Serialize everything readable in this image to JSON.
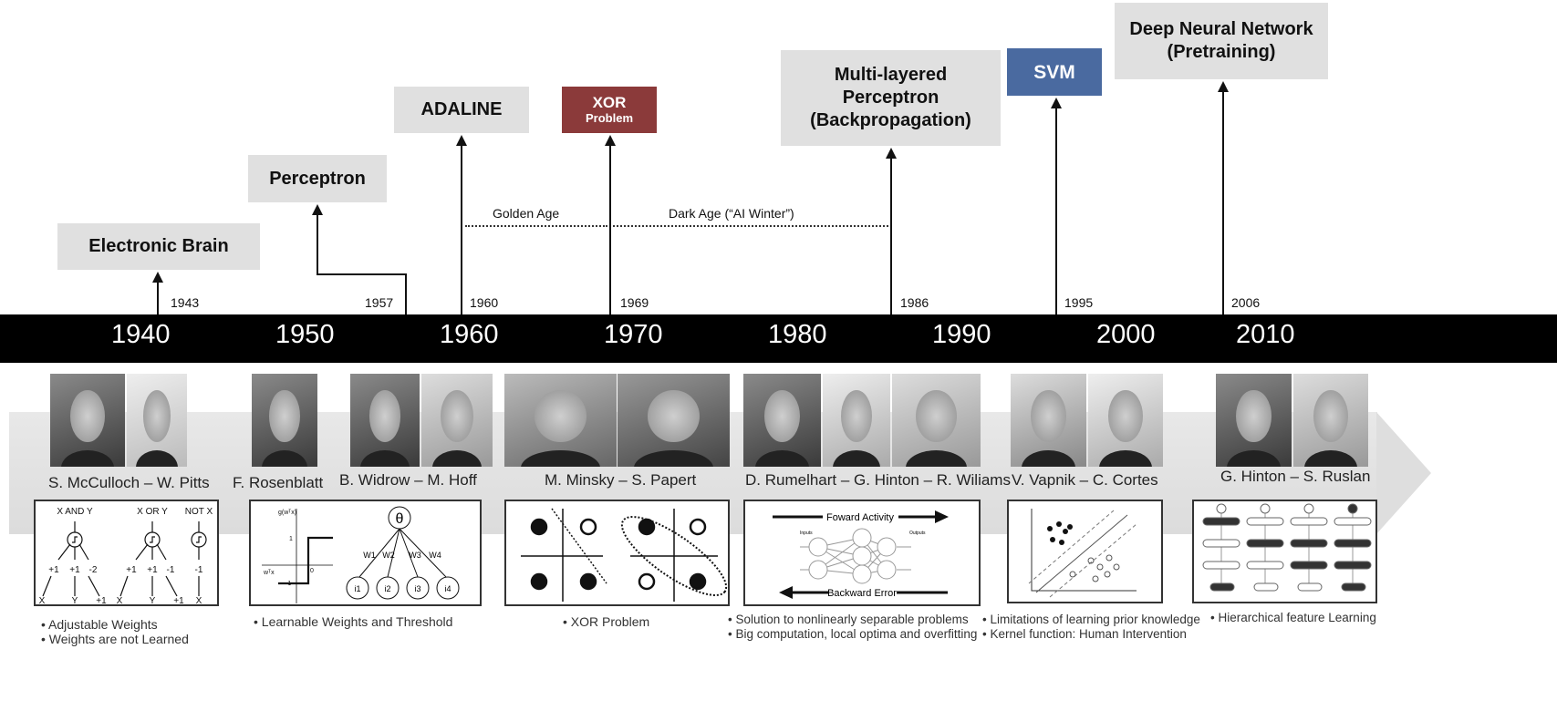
{
  "milestones": [
    {
      "label": "Electronic Brain",
      "year": "1943"
    },
    {
      "label": "Perceptron",
      "year": "1957"
    },
    {
      "label": "ADALINE",
      "year": "1960"
    },
    {
      "label_line1": "XOR",
      "label_line2": "Problem",
      "year": "1969",
      "color": "#8b3a3a"
    },
    {
      "label_line1": "Multi-layered",
      "label_line2": "Perceptron",
      "label_line3": "(Backpropagation)",
      "year": "1986"
    },
    {
      "label": "SVM",
      "year": "1995",
      "color": "#4a6aa0"
    },
    {
      "label_line1": "Deep Neural Network",
      "label_line2": "(Pretraining)",
      "year": "2006"
    }
  ],
  "eras": {
    "golden": "Golden Age",
    "dark": "Dark Age (“AI Winter”)"
  },
  "decades": [
    "1940",
    "1950",
    "1960",
    "1970",
    "1980",
    "1990",
    "2000",
    "2010"
  ],
  "people": [
    "S. McCulloch – W. Pitts",
    "F. Rosenblatt",
    "B. Widrow – M. Hoff",
    "M. Minsky – S. Papert",
    "D. Rumelhart – G. Hinton – R. Wiliams",
    "V. Vapnik – C. Cortes",
    "G. Hinton – S. Ruslan"
  ],
  "diagrams": {
    "logic": {
      "and": "X AND Y",
      "or": "X OR Y",
      "not": "NOT X",
      "w_and": [
        "+1",
        "+1",
        "-2"
      ],
      "w_or": [
        "+1",
        "+1",
        "-1"
      ],
      "w_not": "-1",
      "inputs": [
        "X",
        "Y",
        "+1"
      ],
      "input_not": "X"
    },
    "perceptron": {
      "theta": "θ",
      "weights": [
        "W1",
        "W2",
        "W3",
        "W4"
      ],
      "inputs": [
        "i1",
        "i2",
        "i3",
        "i4"
      ],
      "y1": "1",
      "yneg": "-1",
      "gx": "g(wᵀx)",
      "wx": "wᵀx",
      "zero": "0"
    },
    "backprop": {
      "forward": "Foward Activity",
      "backward": "Backward Error",
      "inputs": "Inputs",
      "outputs": "Outputs"
    }
  },
  "bullets": [
    [
      "Adjustable Weights",
      "Weights are not Learned"
    ],
    [
      "Learnable Weights  and Threshold"
    ],
    [
      "XOR Problem"
    ],
    [
      "Solution to nonlinearly separable problems",
      "Big computation, local optima and overfitting"
    ],
    [
      "Limitations of learning prior knowledge",
      "Kernel function: Human Intervention"
    ],
    [
      "Hierarchical feature Learning"
    ]
  ],
  "colors": {
    "timeline": "#000000",
    "box": "#e0e0e0",
    "xor": "#8b3a3a",
    "svm": "#4a6aa0"
  }
}
